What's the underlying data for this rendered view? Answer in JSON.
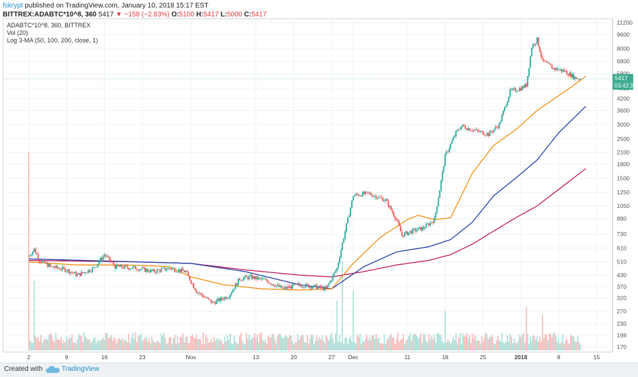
{
  "header": {
    "user": "fskrypt",
    "published": "published on TradingView.com, January 10, 2018 15:17 EST"
  },
  "symbol_line": {
    "symbol": "BITTREX:ADABTC*10^8, 360",
    "last": "5417",
    "arrow": "▼",
    "change": "−158 (−2.83%)",
    "o_label": "O:",
    "o_value": "5100",
    "h_label": "H:",
    "h_value": "5417",
    "l_label": "L:",
    "l_value": "5000",
    "c_label": "C:",
    "c_value": "5417"
  },
  "legend": {
    "line1": "ADABTC*10^8, 360, BITTREX",
    "line2": "Vol (20)",
    "line3": "Log 3-MA (50, 100, 200, close, 1)"
  },
  "footer": {
    "created": "Created with",
    "brand": "TradingView"
  },
  "price_tags": {
    "last": "5417",
    "countdown": "03:42:3"
  },
  "colors": {
    "up": "#26a69a",
    "down": "#ef5350",
    "ma50": "#f28c0f",
    "ma100": "#1f3fa6",
    "ma200": "#c2185b",
    "accent": "#1e90c8",
    "price_line": "#5fb7b0"
  },
  "chart_data": {
    "type": "candlestick",
    "title": "ADABTC*10^8, 360, BITTREX",
    "y_scale": "log",
    "ylim": [
      160,
      11600
    ],
    "y_ticks": [
      170,
      198,
      230,
      270,
      320,
      370,
      430,
      510,
      610,
      730,
      890,
      1050,
      1250,
      1500,
      1800,
      2100,
      2500,
      3000,
      3600,
      4200,
      4800,
      5800,
      6800,
      8000,
      9600,
      11200
    ],
    "x_ticks": [
      "2",
      "9",
      "16",
      "23",
      "Nov",
      "13",
      "20",
      "27",
      "Dec",
      "11",
      "18",
      "25",
      "2018",
      "8",
      "15"
    ],
    "x_tick_index": [
      0,
      7,
      14,
      21,
      30,
      42,
      49,
      56,
      60,
      70,
      77,
      84,
      91,
      98,
      105
    ],
    "bold_ticks": [
      "2018"
    ],
    "n_days": 108,
    "price_anchors": [
      [
        0,
        550
      ],
      [
        1,
        600
      ],
      [
        2,
        520
      ],
      [
        4,
        480
      ],
      [
        7,
        460
      ],
      [
        9,
        430
      ],
      [
        12,
        470
      ],
      [
        14,
        560
      ],
      [
        16,
        480
      ],
      [
        20,
        470
      ],
      [
        23,
        450
      ],
      [
        26,
        470
      ],
      [
        29,
        450
      ],
      [
        31,
        350
      ],
      [
        34,
        300
      ],
      [
        37,
        330
      ],
      [
        39,
        410
      ],
      [
        41,
        420
      ],
      [
        44,
        400
      ],
      [
        47,
        360
      ],
      [
        50,
        380
      ],
      [
        53,
        370
      ],
      [
        55,
        360
      ],
      [
        57,
        470
      ],
      [
        58,
        650
      ],
      [
        60,
        1200
      ],
      [
        61,
        1220
      ],
      [
        63,
        1230
      ],
      [
        66,
        1130
      ],
      [
        68,
        880
      ],
      [
        69,
        720
      ],
      [
        71,
        760
      ],
      [
        73,
        790
      ],
      [
        75,
        880
      ],
      [
        76,
        1300
      ],
      [
        77,
        2000
      ],
      [
        79,
        2700
      ],
      [
        80,
        2950
      ],
      [
        83,
        2750
      ],
      [
        85,
        2650
      ],
      [
        87,
        3000
      ],
      [
        89,
        4600
      ],
      [
        91,
        4800
      ],
      [
        92,
        5000
      ],
      [
        93,
        8200
      ],
      [
        94,
        9000
      ],
      [
        95,
        6800
      ],
      [
        97,
        6200
      ],
      [
        99,
        6000
      ],
      [
        101,
        5500
      ],
      [
        102,
        5417
      ]
    ],
    "ma50_anchors": [
      [
        0,
        510
      ],
      [
        9,
        490
      ],
      [
        18,
        490
      ],
      [
        26,
        480
      ],
      [
        30,
        420
      ],
      [
        36,
        380
      ],
      [
        43,
        360
      ],
      [
        50,
        355
      ],
      [
        56,
        360
      ],
      [
        60,
        500
      ],
      [
        65,
        700
      ],
      [
        70,
        880
      ],
      [
        72,
        930
      ],
      [
        75,
        880
      ],
      [
        78,
        900
      ],
      [
        82,
        1600
      ],
      [
        86,
        2300
      ],
      [
        90,
        2800
      ],
      [
        94,
        3600
      ],
      [
        100,
        4800
      ],
      [
        103,
        5600
      ]
    ],
    "ma100_anchors": [
      [
        0,
        530
      ],
      [
        10,
        520
      ],
      [
        20,
        510
      ],
      [
        30,
        500
      ],
      [
        40,
        450
      ],
      [
        50,
        380
      ],
      [
        56,
        360
      ],
      [
        62,
        480
      ],
      [
        68,
        580
      ],
      [
        74,
        620
      ],
      [
        78,
        680
      ],
      [
        82,
        850
      ],
      [
        86,
        1200
      ],
      [
        90,
        1500
      ],
      [
        94,
        1900
      ],
      [
        98,
        2700
      ],
      [
        103,
        3800
      ]
    ],
    "ma200_anchors": [
      [
        0,
        520
      ],
      [
        10,
        515
      ],
      [
        20,
        510
      ],
      [
        30,
        500
      ],
      [
        40,
        460
      ],
      [
        50,
        430
      ],
      [
        56,
        420
      ],
      [
        62,
        450
      ],
      [
        68,
        490
      ],
      [
        74,
        520
      ],
      [
        78,
        560
      ],
      [
        82,
        640
      ],
      [
        86,
        760
      ],
      [
        90,
        900
      ],
      [
        94,
        1050
      ],
      [
        98,
        1300
      ],
      [
        103,
        1700
      ]
    ],
    "volume_spikes": [
      [
        0,
        1.0
      ],
      [
        1,
        0.35
      ],
      [
        57,
        0.25
      ],
      [
        58,
        0.45
      ],
      [
        60,
        0.3
      ],
      [
        77,
        0.2
      ],
      [
        92,
        0.22
      ],
      [
        95,
        0.18
      ]
    ],
    "last_price": 5417
  }
}
